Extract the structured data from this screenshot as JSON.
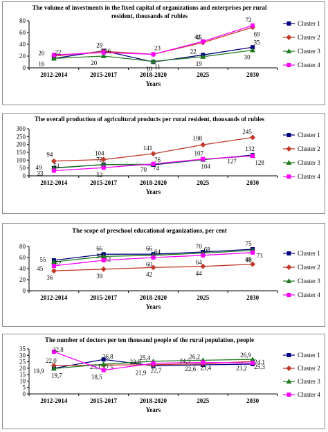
{
  "chart_data": [
    {
      "type": "line",
      "title": "The volume of investments in the fixed capital of organizations and enterprises per rural resident, thousands of rubles",
      "categories": [
        "2012-2014",
        "2015-2017",
        "2018-2020",
        "2025",
        "2030"
      ],
      "xlabel": "Years",
      "ylabel": "",
      "ylim": [
        0,
        80
      ],
      "yticks": [
        0,
        20,
        40,
        60,
        80
      ],
      "legend_position": "right",
      "series": [
        {
          "name": "Cluster 1",
          "color": "#000080",
          "marker": "square",
          "values": [
            16,
            29,
            10,
            22,
            35
          ],
          "labels": [
            "",
            "29",
            "10",
            "22",
            "35"
          ]
        },
        {
          "name": "Cluster 2",
          "color": "#c0392b",
          "marker": "diamond",
          "values": [
            20,
            28,
            23,
            43,
            69
          ],
          "labels": [
            "20",
            "",
            "23",
            "43",
            "69"
          ]
        },
        {
          "name": "Cluster 3",
          "color": "#1e7b1e",
          "marker": "triangle",
          "values": [
            16,
            20,
            11,
            19,
            30
          ],
          "labels": [
            "16",
            "20",
            "11",
            "19",
            "30"
          ]
        },
        {
          "name": "Cluster 4",
          "color": "#ff00ff",
          "marker": "square",
          "values": [
            22,
            26,
            23,
            45,
            72
          ],
          "labels": [
            "22",
            "26",
            "",
            "45",
            "72"
          ]
        }
      ]
    },
    {
      "type": "line",
      "title": "The overall production of agricultural products per rural resident, thousands of rubles",
      "categories": [
        "2012-2014",
        "2015-2017",
        "2018-2020",
        "2025",
        "2030"
      ],
      "xlabel": "Years",
      "ylabel": "",
      "ylim": [
        0,
        300
      ],
      "yticks": [
        0,
        50,
        100,
        150,
        200,
        250,
        300
      ],
      "legend_position": "right",
      "series": [
        {
          "name": "Cluster 1",
          "color": "#000080",
          "marker": "square",
          "values": [
            49,
            72,
            70,
            103,
            132
          ],
          "labels": [
            "49",
            "72",
            "70",
            "",
            "132"
          ]
        },
        {
          "name": "Cluster 2",
          "color": "#c0392b",
          "marker": "diamond",
          "values": [
            94,
            104,
            141,
            198,
            245
          ],
          "labels": [
            "94",
            "104",
            "141",
            "198",
            "245"
          ]
        },
        {
          "name": "Cluster 3",
          "color": "#1e7b1e",
          "marker": "triangle",
          "values": [
            51,
            72,
            74,
            104,
            128
          ],
          "labels": [
            "51",
            "",
            "74",
            "104",
            "128"
          ]
        },
        {
          "name": "Cluster 4",
          "color": "#ff00ff",
          "marker": "square",
          "values": [
            33,
            52,
            76,
            107,
            127
          ],
          "labels": [
            "33",
            "52",
            "76",
            "107",
            "127"
          ]
        }
      ]
    },
    {
      "type": "line",
      "title": "The scope of preschool educational organizations, per cent",
      "categories": [
        "2012-2014",
        "2015-2017",
        "2018-2020",
        "2025",
        "2030"
      ],
      "xlabel": "Years",
      "ylabel": "",
      "ylim": [
        0,
        80
      ],
      "yticks": [
        0,
        20,
        40,
        60,
        80
      ],
      "legend_position": "right",
      "series": [
        {
          "name": "Cluster 1",
          "color": "#000080",
          "marker": "square",
          "values": [
            55,
            66,
            66,
            70,
            75
          ],
          "labels": [
            "55",
            "66",
            "66",
            "70",
            "75"
          ]
        },
        {
          "name": "Cluster 2",
          "color": "#c0392b",
          "marker": "diamond",
          "values": [
            36,
            39,
            42,
            44,
            48
          ],
          "labels": [
            "36",
            "39",
            "42",
            "44",
            "48"
          ]
        },
        {
          "name": "Cluster 3",
          "color": "#1e7b1e",
          "marker": "triangle",
          "values": [
            52,
            62,
            64,
            68,
            73
          ],
          "labels": [
            "52",
            "62",
            "64",
            "68",
            "73"
          ]
        },
        {
          "name": "Cluster 4",
          "color": "#ff00ff",
          "marker": "square",
          "values": [
            45,
            55,
            60,
            64,
            69
          ],
          "labels": [
            "45",
            "55",
            "60",
            "64",
            "69"
          ]
        }
      ]
    },
    {
      "type": "line",
      "title": "The number of doctors per ten thousand people of the rural population, people",
      "categories": [
        "2012-2014",
        "2015-2017",
        "2018-2020",
        "2025",
        "2030"
      ],
      "xlabel": "Years",
      "ylabel": "",
      "ylim": [
        0,
        35
      ],
      "yticks": [
        0,
        5,
        10,
        15,
        20,
        25,
        30,
        35
      ],
      "legend_position": "right",
      "series": [
        {
          "name": "Cluster 1",
          "color": "#000080",
          "marker": "square",
          "values": [
            19.9,
            26.8,
            21.9,
            22.6,
            23.2
          ],
          "labels": [
            "19,9",
            "26,8",
            "21,9",
            "22,6",
            "23,2"
          ]
        },
        {
          "name": "Cluster 2",
          "color": "#c0392b",
          "marker": "diamond",
          "values": [
            22.0,
            22.5,
            22.7,
            23.4,
            25.3
          ],
          "labels": [
            "22,0",
            "22,5",
            "22,7",
            "23,4",
            "25,3"
          ]
        },
        {
          "name": "Cluster 3",
          "color": "#1e7b1e",
          "marker": "triangle",
          "values": [
            19.7,
            23.1,
            25.4,
            26.2,
            26.9
          ],
          "labels": [
            "19,7",
            "23,1",
            "25,4",
            "26,2",
            "26,9"
          ]
        },
        {
          "name": "Cluster 4",
          "color": "#ff00ff",
          "marker": "square",
          "values": [
            32.8,
            18.5,
            23.8,
            24.5,
            24.1
          ],
          "labels": [
            "32,8",
            "18,5",
            "23,8",
            "24,5",
            "24,1"
          ]
        }
      ]
    }
  ]
}
